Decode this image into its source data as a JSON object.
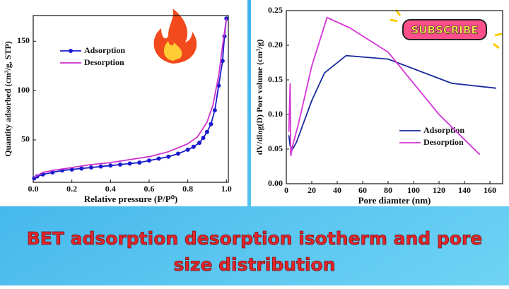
{
  "chart_data": [
    {
      "type": "line",
      "xlabel": "Relative pressure (P/P⁰)",
      "ylabel": "Quantity adsorbed (cm³/g, STP)",
      "xlim": [
        0,
        1.01
      ],
      "ylim": [
        7,
        176
      ],
      "xticks": [
        {
          "value": 0,
          "label": "0.0"
        },
        {
          "value": 0.2,
          "label": "0.2"
        },
        {
          "value": 0.4,
          "label": "0.4"
        },
        {
          "value": 0.6,
          "label": "0.6"
        },
        {
          "value": 0.8,
          "label": "0.8"
        },
        {
          "value": 1,
          "label": "1.0"
        }
      ],
      "yticks": [
        50,
        100,
        150
      ],
      "legend": "upper-left",
      "series": [
        {
          "name": "Adsorption",
          "color": "#1a1acc",
          "markers": true,
          "x": [
            0.005,
            0.02,
            0.05,
            0.1,
            0.15,
            0.2,
            0.25,
            0.3,
            0.35,
            0.4,
            0.45,
            0.5,
            0.55,
            0.6,
            0.65,
            0.7,
            0.75,
            0.8,
            0.83,
            0.86,
            0.88,
            0.9,
            0.92,
            0.94,
            0.96,
            0.98,
            0.99,
            1.0
          ],
          "values": [
            11,
            13,
            15,
            17,
            19,
            20,
            21,
            22,
            23,
            24,
            25,
            26,
            27,
            29,
            31,
            33,
            36,
            40,
            43,
            47,
            52,
            58,
            66,
            80,
            105,
            130,
            155,
            173
          ]
        },
        {
          "name": "Desorption",
          "color": "#cc33cc",
          "markers": false,
          "x": [
            0.005,
            0.05,
            0.1,
            0.2,
            0.3,
            0.4,
            0.5,
            0.6,
            0.7,
            0.8,
            0.85,
            0.9,
            0.93,
            0.96,
            0.98,
            1.0
          ],
          "values": [
            12,
            17,
            19,
            22,
            25,
            27,
            30,
            33,
            38,
            46,
            53,
            68,
            85,
            115,
            145,
            173
          ]
        }
      ]
    },
    {
      "type": "line",
      "xlabel": "Pore diamter (nm)",
      "ylabel": "dV/dlog(D) Pore volume (cm³/g)",
      "xlim": [
        0,
        170
      ],
      "ylim": [
        0,
        0.25
      ],
      "xticks": [
        0,
        20,
        40,
        60,
        80,
        100,
        120,
        140,
        160
      ],
      "yticks": [
        {
          "value": 0,
          "label": "0.00"
        },
        {
          "value": 0.05,
          "label": "0.05"
        },
        {
          "value": 0.1,
          "label": "0.10"
        },
        {
          "value": 0.15,
          "label": "0.15"
        },
        {
          "value": 0.2,
          "label": "0.20"
        },
        {
          "value": 0.25,
          "label": "0.25"
        }
      ],
      "legend": "center-right",
      "series": [
        {
          "name": "Adsorption",
          "color": "#1a2a9c",
          "markers": false,
          "x": [
            2,
            3,
            5,
            8,
            12,
            20,
            30,
            47,
            80,
            130,
            165
          ],
          "values": [
            0.07,
            0.055,
            0.05,
            0.06,
            0.08,
            0.12,
            0.16,
            0.185,
            0.18,
            0.145,
            0.138
          ]
        },
        {
          "name": "Desorption",
          "color": "#d633d6",
          "markers": false,
          "x": [
            2,
            3,
            3.5,
            5,
            10,
            20,
            32,
            50,
            80,
            120,
            152
          ],
          "values": [
            0.075,
            0.145,
            0.04,
            0.055,
            0.09,
            0.17,
            0.24,
            0.225,
            0.19,
            0.1,
            0.042
          ]
        }
      ]
    }
  ],
  "sticker": "SUBSCRIBE",
  "banner": [
    "BET adsorption desorption isotherm and pore",
    "size distribution"
  ]
}
